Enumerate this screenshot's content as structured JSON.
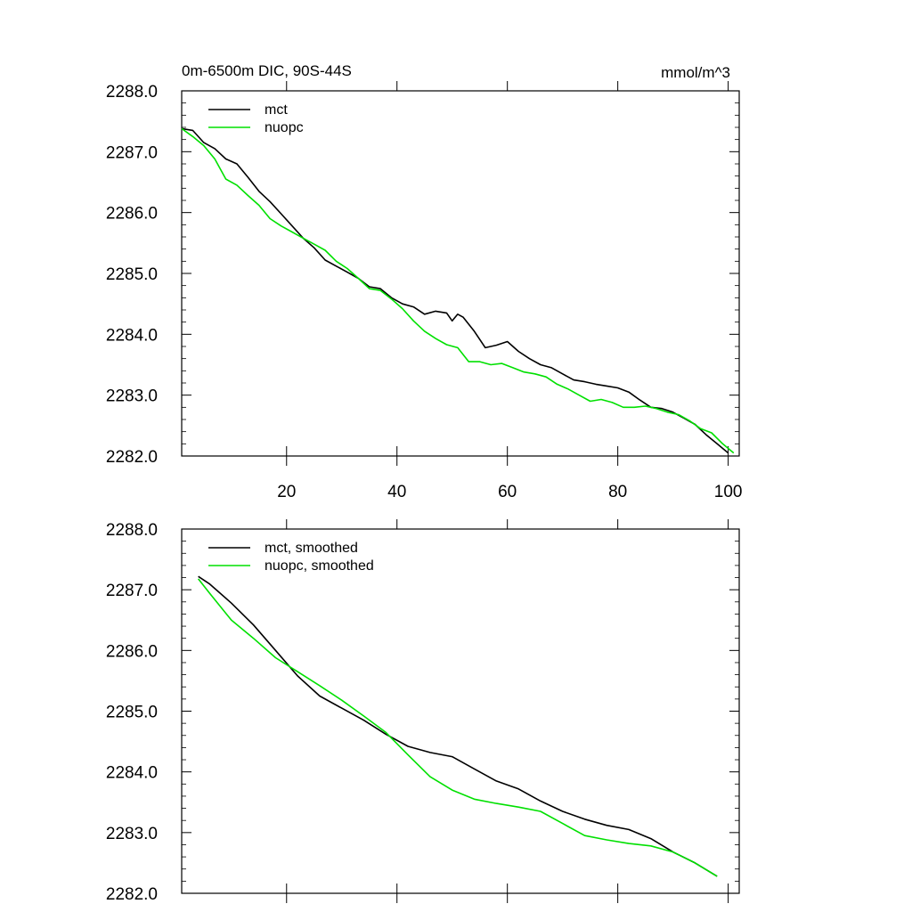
{
  "chart_data": [
    {
      "type": "line",
      "title_left": "0m-6500m DIC, 90S-44S",
      "title_right": "mmol/m^3",
      "xlabel": "",
      "ylabel": "",
      "xlim": [
        1,
        102
      ],
      "ylim": [
        2282.0,
        2288.0
      ],
      "x_ticks": [
        20,
        40,
        60,
        80,
        100
      ],
      "x_tick_labels": [
        "20",
        "40",
        "60",
        "80",
        "100"
      ],
      "y_ticks": [
        2282.0,
        2283.0,
        2284.0,
        2285.0,
        2286.0,
        2287.0,
        2288.0
      ],
      "y_tick_labels": [
        "2282.0",
        "2283.0",
        "2284.0",
        "2285.0",
        "2286.0",
        "2287.0",
        "2288.0"
      ],
      "legend_position": "top-left",
      "series": [
        {
          "name": "mct",
          "color": "#000000",
          "x": [
            1,
            3,
            5,
            7,
            9,
            11,
            13,
            15,
            17,
            19,
            21,
            23,
            25,
            27,
            29,
            31,
            33,
            35,
            37,
            39,
            41,
            43,
            45,
            47,
            49,
            50,
            51,
            52,
            54,
            56,
            58,
            60,
            62,
            64,
            66,
            68,
            70,
            72,
            74,
            76,
            78,
            80,
            82,
            84,
            86,
            88,
            90,
            92,
            94,
            96,
            98,
            100
          ],
          "y": [
            2287.38,
            2287.35,
            2287.15,
            2287.05,
            2286.88,
            2286.8,
            2286.58,
            2286.35,
            2286.18,
            2285.98,
            2285.78,
            2285.58,
            2285.42,
            2285.22,
            2285.12,
            2285.02,
            2284.92,
            2284.78,
            2284.75,
            2284.6,
            2284.5,
            2284.45,
            2284.33,
            2284.38,
            2284.35,
            2284.22,
            2284.33,
            2284.28,
            2284.05,
            2283.78,
            2283.82,
            2283.88,
            2283.72,
            2283.6,
            2283.5,
            2283.45,
            2283.35,
            2283.25,
            2283.22,
            2283.18,
            2283.15,
            2283.12,
            2283.05,
            2282.92,
            2282.8,
            2282.78,
            2282.72,
            2282.62,
            2282.52,
            2282.35,
            2282.2,
            2282.05
          ]
        },
        {
          "name": "nuopc",
          "color": "#00e000",
          "x": [
            1,
            3,
            5,
            7,
            9,
            11,
            13,
            15,
            17,
            19,
            21,
            23,
            25,
            27,
            29,
            31,
            33,
            35,
            37,
            39,
            41,
            43,
            45,
            47,
            49,
            51,
            53,
            55,
            57,
            59,
            61,
            63,
            65,
            67,
            69,
            71,
            73,
            75,
            77,
            79,
            81,
            83,
            85,
            87,
            89,
            91,
            93,
            95,
            97,
            99,
            101
          ],
          "y": [
            2287.38,
            2287.25,
            2287.1,
            2286.88,
            2286.55,
            2286.45,
            2286.28,
            2286.12,
            2285.9,
            2285.78,
            2285.68,
            2285.58,
            2285.48,
            2285.38,
            2285.2,
            2285.08,
            2284.92,
            2284.75,
            2284.72,
            2284.58,
            2284.42,
            2284.22,
            2284.05,
            2283.93,
            2283.83,
            2283.78,
            2283.55,
            2283.55,
            2283.5,
            2283.52,
            2283.45,
            2283.38,
            2283.35,
            2283.3,
            2283.18,
            2283.1,
            2283.0,
            2282.9,
            2282.93,
            2282.88,
            2282.8,
            2282.8,
            2282.82,
            2282.78,
            2282.72,
            2282.68,
            2282.58,
            2282.45,
            2282.38,
            2282.2,
            2282.05
          ]
        }
      ]
    },
    {
      "type": "line",
      "title_left": "",
      "title_right": "",
      "xlabel": "",
      "ylabel": "",
      "xlim": [
        1,
        102
      ],
      "ylim": [
        2282.0,
        2288.0
      ],
      "x_ticks": [
        20,
        40,
        60,
        80,
        100
      ],
      "x_tick_labels": [],
      "y_ticks": [
        2282.0,
        2283.0,
        2284.0,
        2285.0,
        2286.0,
        2287.0,
        2288.0
      ],
      "y_tick_labels": [
        "2282.0",
        "2283.0",
        "2284.0",
        "2285.0",
        "2286.0",
        "2287.0",
        "2288.0"
      ],
      "legend_position": "top-left",
      "series": [
        {
          "name": "mct, smoothed",
          "color": "#000000",
          "x": [
            4,
            6,
            10,
            14,
            18,
            22,
            26,
            30,
            34,
            38,
            42,
            46,
            50,
            54,
            58,
            62,
            66,
            70,
            74,
            78,
            82,
            86,
            90,
            94,
            98
          ],
          "y": [
            2287.22,
            2287.1,
            2286.78,
            2286.42,
            2286.0,
            2285.58,
            2285.25,
            2285.05,
            2284.85,
            2284.62,
            2284.42,
            2284.32,
            2284.25,
            2284.05,
            2283.85,
            2283.72,
            2283.52,
            2283.35,
            2283.22,
            2283.12,
            2283.05,
            2282.9,
            2282.68,
            2282.5,
            2282.28
          ]
        },
        {
          "name": "nuopc, smoothed",
          "color": "#00e000",
          "x": [
            4,
            6,
            10,
            14,
            18,
            22,
            26,
            30,
            34,
            38,
            42,
            46,
            50,
            54,
            58,
            62,
            66,
            70,
            74,
            78,
            82,
            86,
            90,
            94,
            98
          ],
          "y": [
            2287.18,
            2286.95,
            2286.5,
            2286.2,
            2285.88,
            2285.65,
            2285.42,
            2285.18,
            2284.92,
            2284.65,
            2284.28,
            2283.92,
            2283.7,
            2283.55,
            2283.48,
            2283.42,
            2283.35,
            2283.15,
            2282.95,
            2282.88,
            2282.82,
            2282.78,
            2282.68,
            2282.5,
            2282.28
          ]
        }
      ]
    }
  ]
}
